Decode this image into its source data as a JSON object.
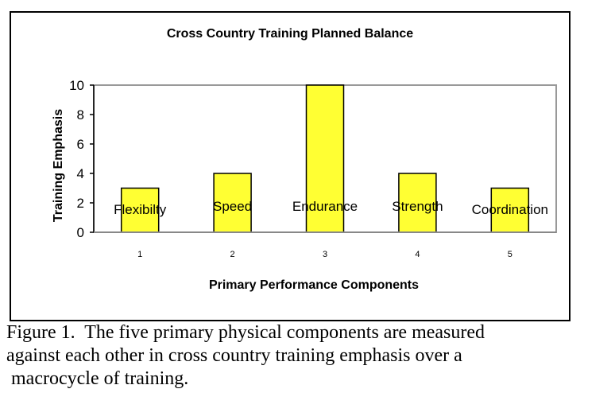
{
  "chart_data": {
    "type": "bar",
    "title": "Cross Country Training Planned Balance",
    "xlabel": "Primary Performance Components",
    "ylabel": "Training Emphasis",
    "categories": [
      "1",
      "2",
      "3",
      "4",
      "5"
    ],
    "bar_labels": [
      "Flexibilty",
      "Speed",
      "Endurance",
      "Strength",
      "Coordination"
    ],
    "values": [
      3,
      4,
      10,
      4,
      3
    ],
    "ylim": [
      0,
      10
    ],
    "yticks": [
      0,
      2,
      4,
      6,
      8,
      10
    ],
    "grid": false,
    "legend": null,
    "bar_color": "#FFFF33"
  },
  "caption": {
    "lines": [
      "Figure 1.  The five primary physical components are measured",
      "against each other in cross country training emphasis over a",
      " macrocycle of training."
    ]
  }
}
